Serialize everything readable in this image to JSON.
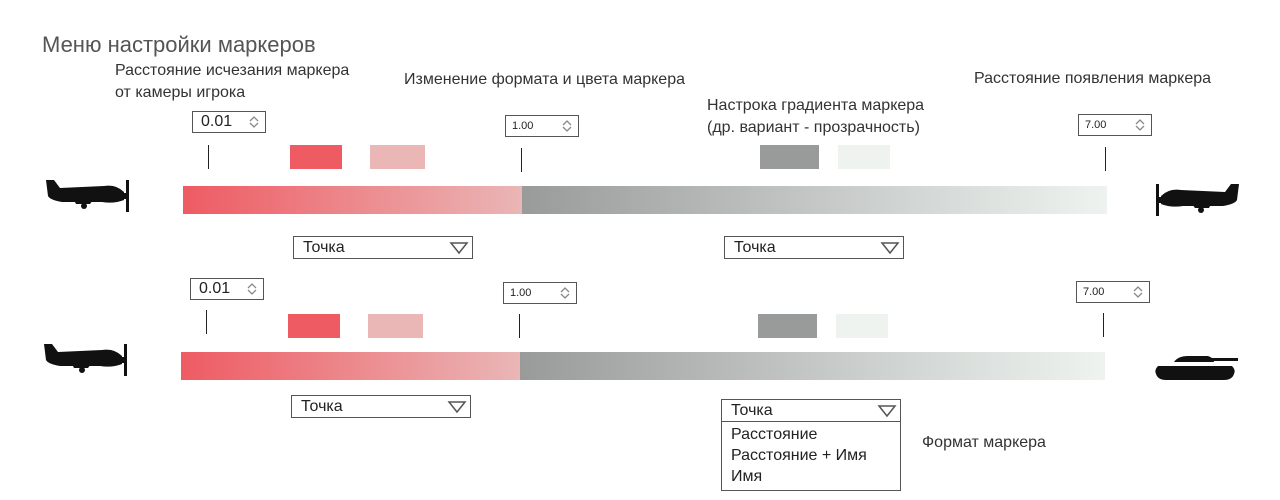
{
  "title": "Меню настройки маркеров",
  "notes": {
    "fade_line1": "Расстояние исчезания маркера",
    "fade_line2": "от камеры игрока",
    "format_color": "Изменение формата и цвета маркера",
    "gradient_line1": "Настрока градиента маркера",
    "gradient_line2": "(др. вариант - прозрачность)",
    "appear": "Расстояние появления маркера",
    "marker_format": "Формат маркера"
  },
  "colors": {
    "red_strong": "#ee5b63",
    "red_light": "#eab6b6",
    "gray_dark": "#999b9b",
    "gray_light": "#eef3f0"
  },
  "rows": [
    {
      "near_value": "0.01",
      "mid_value": "1.00",
      "far_value": "7.00",
      "left_select": "Точка",
      "right_select": "Точка",
      "left_icon": "plane-icon",
      "right_icon": "plane-icon"
    },
    {
      "near_value": "0.01",
      "mid_value": "1.00",
      "far_value": "7.00",
      "left_select": "Точка",
      "right_select": "Точка",
      "left_icon": "plane-icon",
      "right_icon": "tank-icon"
    }
  ],
  "dropdown_options": [
    "Расстояние",
    "Расстояние + Имя",
    "Имя"
  ]
}
